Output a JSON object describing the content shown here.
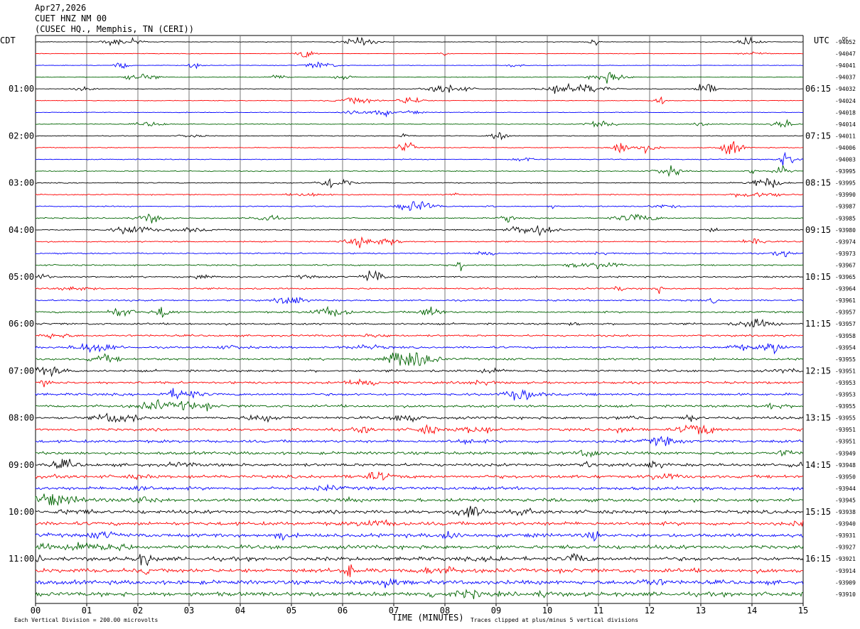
{
  "header": {
    "date": "Apr27,2026",
    "station": "CUET HNZ NM 00",
    "location": "(CUSEC HQ., Memphis, TN (CERI))"
  },
  "chart_data": {
    "type": "helicorder",
    "left_label": "CDT",
    "right_label": "UTC",
    "dc_label": "DC",
    "time_labels_left": [
      "01:00",
      "02:00",
      "03:00",
      "04:00",
      "05:00",
      "06:00",
      "07:00",
      "08:00",
      "09:00",
      "10:00",
      "11:00"
    ],
    "time_labels_right": [
      "06:15",
      "07:15",
      "08:15",
      "09:15",
      "10:15",
      "11:15",
      "12:15",
      "13:15",
      "14:15",
      "15:15",
      "16:15"
    ],
    "x_ticks": [
      "00",
      "01",
      "02",
      "03",
      "04",
      "05",
      "06",
      "07",
      "08",
      "09",
      "10",
      "11",
      "12",
      "13",
      "14",
      "15"
    ],
    "xlabel": "TIME (MINUTES)",
    "xlim": [
      0,
      15
    ],
    "minutes_per_line": 15,
    "trace_colors": [
      "#000000",
      "#ff0000",
      "#0000ff",
      "#006400"
    ],
    "dc_offsets": [
      "-94052",
      "-94047",
      "-94041",
      "-94037",
      "-94032",
      "-94024",
      "-94018",
      "-94014",
      "-94011",
      "-94006",
      "-94003",
      "-93995",
      "-93995",
      "-93990",
      "-93987",
      "-93985",
      "-93980",
      "-93974",
      "-93973",
      "-93967",
      "-93965",
      "-93964",
      "-93961",
      "-93957",
      "-93957",
      "-93958",
      "-93954",
      "-93955",
      "-93951",
      "-93953",
      "-93953",
      "-93955",
      "-93955",
      "-93951",
      "-93951",
      "-93949",
      "-93948",
      "-93950",
      "-93944",
      "-93945",
      "-93938",
      "-93940",
      "-93931",
      "-93927",
      "-93921",
      "-93914",
      "-93909",
      "-93910"
    ],
    "footer_left": "Each Vertical Division =  200.00 microvolts",
    "footer_right": "Traces clipped at plus/minus 5 vertical divisions"
  }
}
